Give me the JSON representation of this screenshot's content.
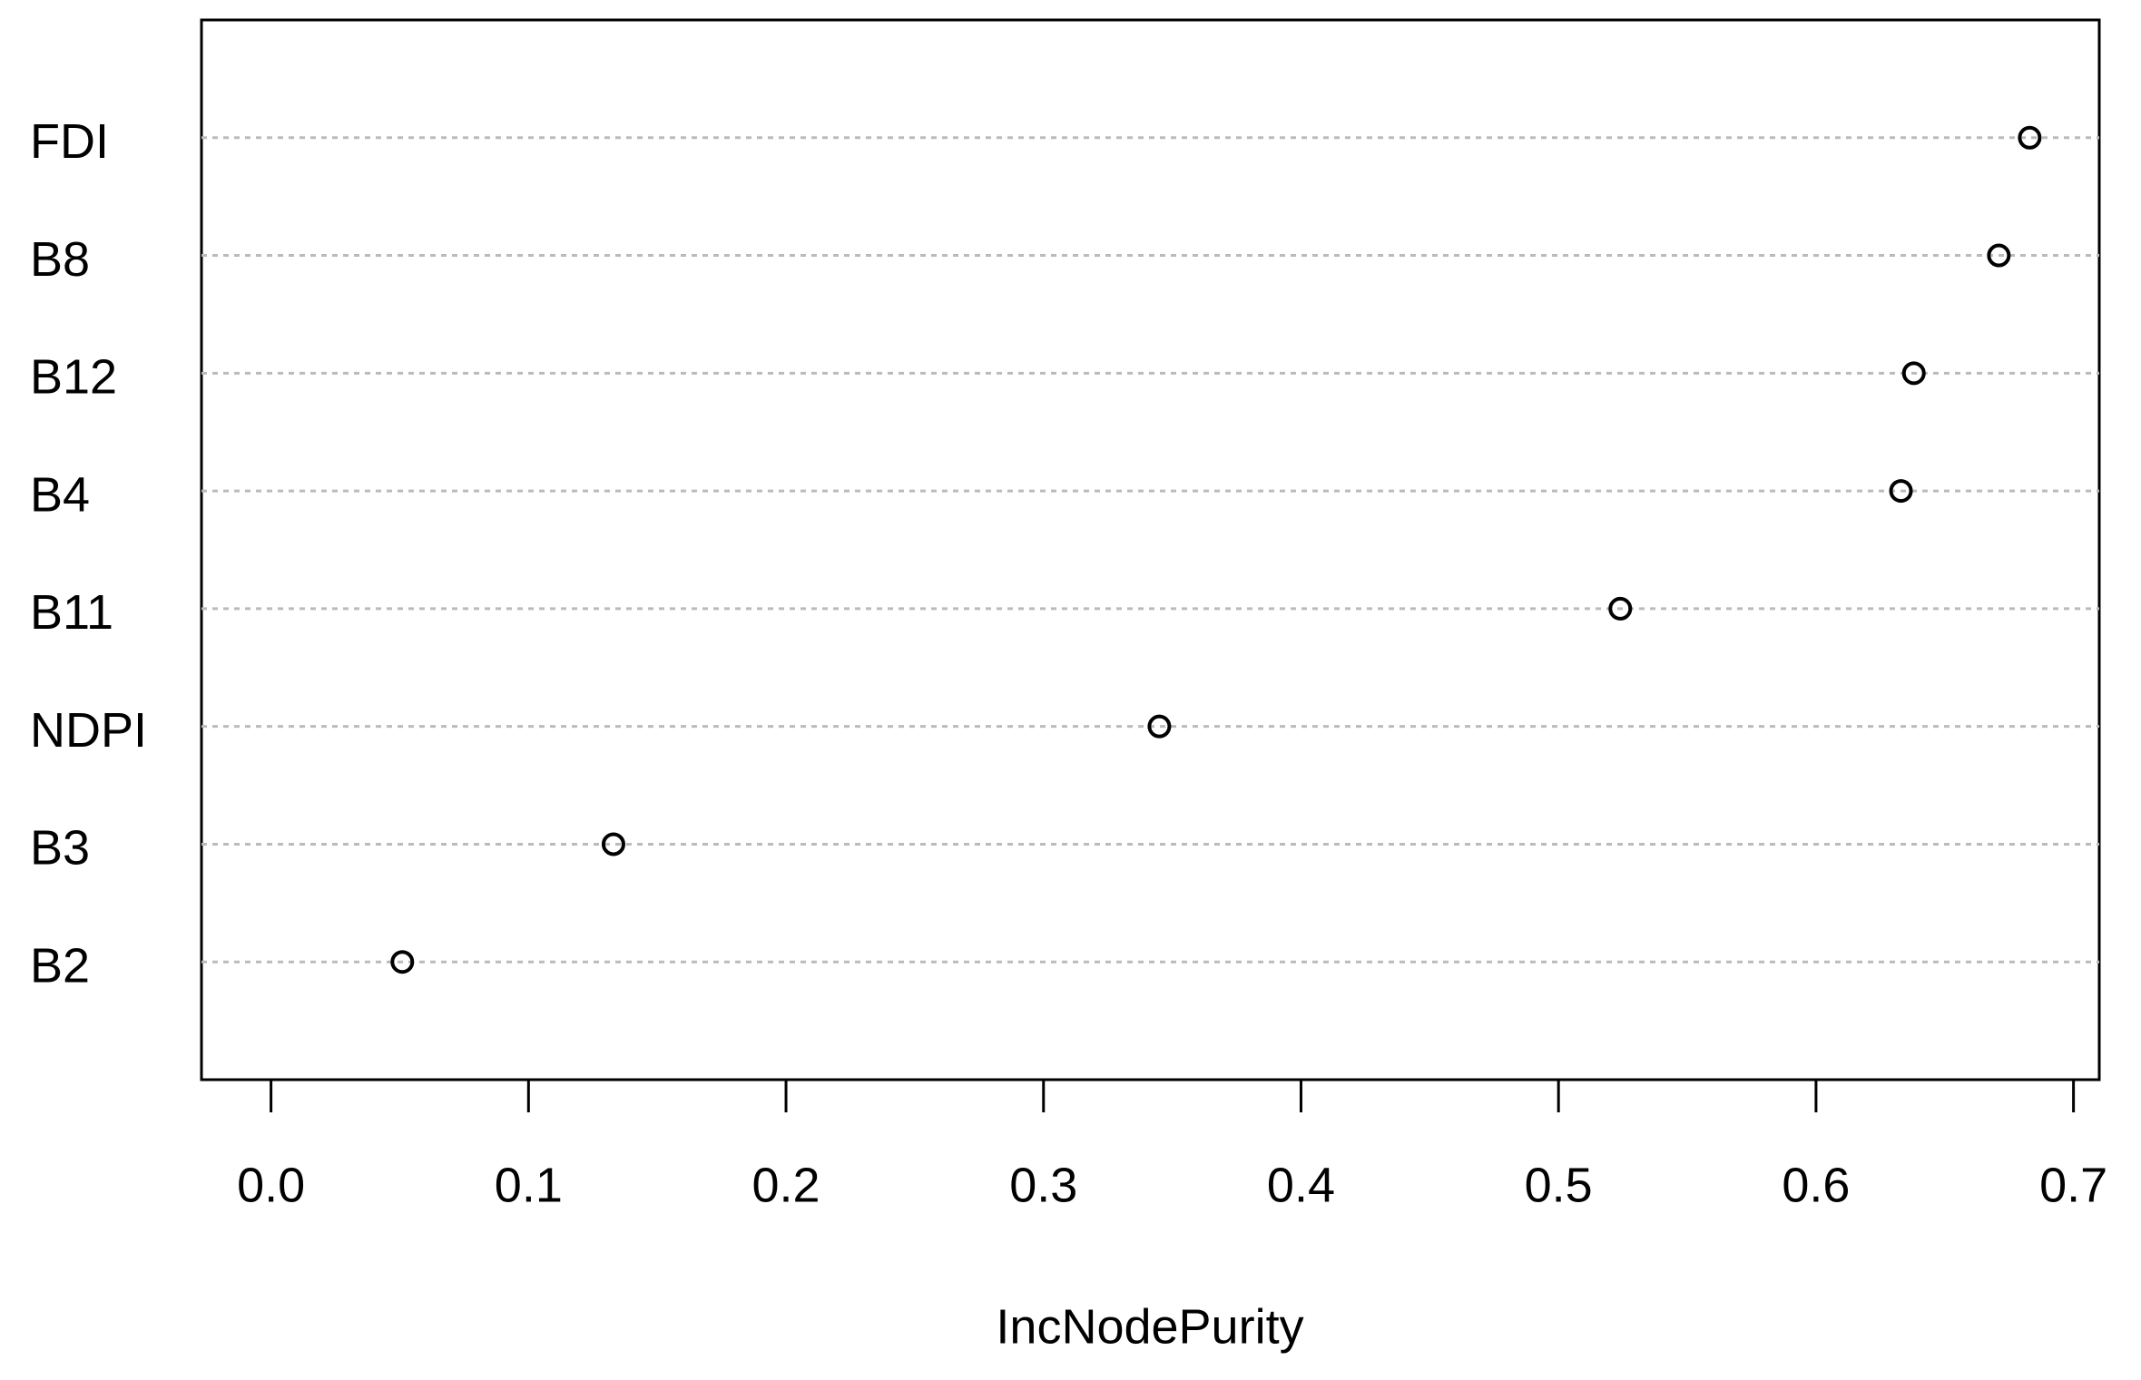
{
  "chart_data": {
    "type": "dot",
    "categories": [
      "FDI",
      "B8",
      "B12",
      "B4",
      "B11",
      "NDPI",
      "B3",
      "B2"
    ],
    "values": [
      0.683,
      0.671,
      0.638,
      0.633,
      0.524,
      0.345,
      0.133,
      0.051
    ],
    "xlabel": "IncNodePurity",
    "xlim": [
      -0.027,
      0.71
    ],
    "xticks": [
      {
        "value": 0,
        "label": "0.0"
      },
      0.1,
      0.2,
      0.3,
      0.4,
      0.5,
      0.6,
      0.7
    ],
    "grid": true,
    "color": "#000000"
  }
}
